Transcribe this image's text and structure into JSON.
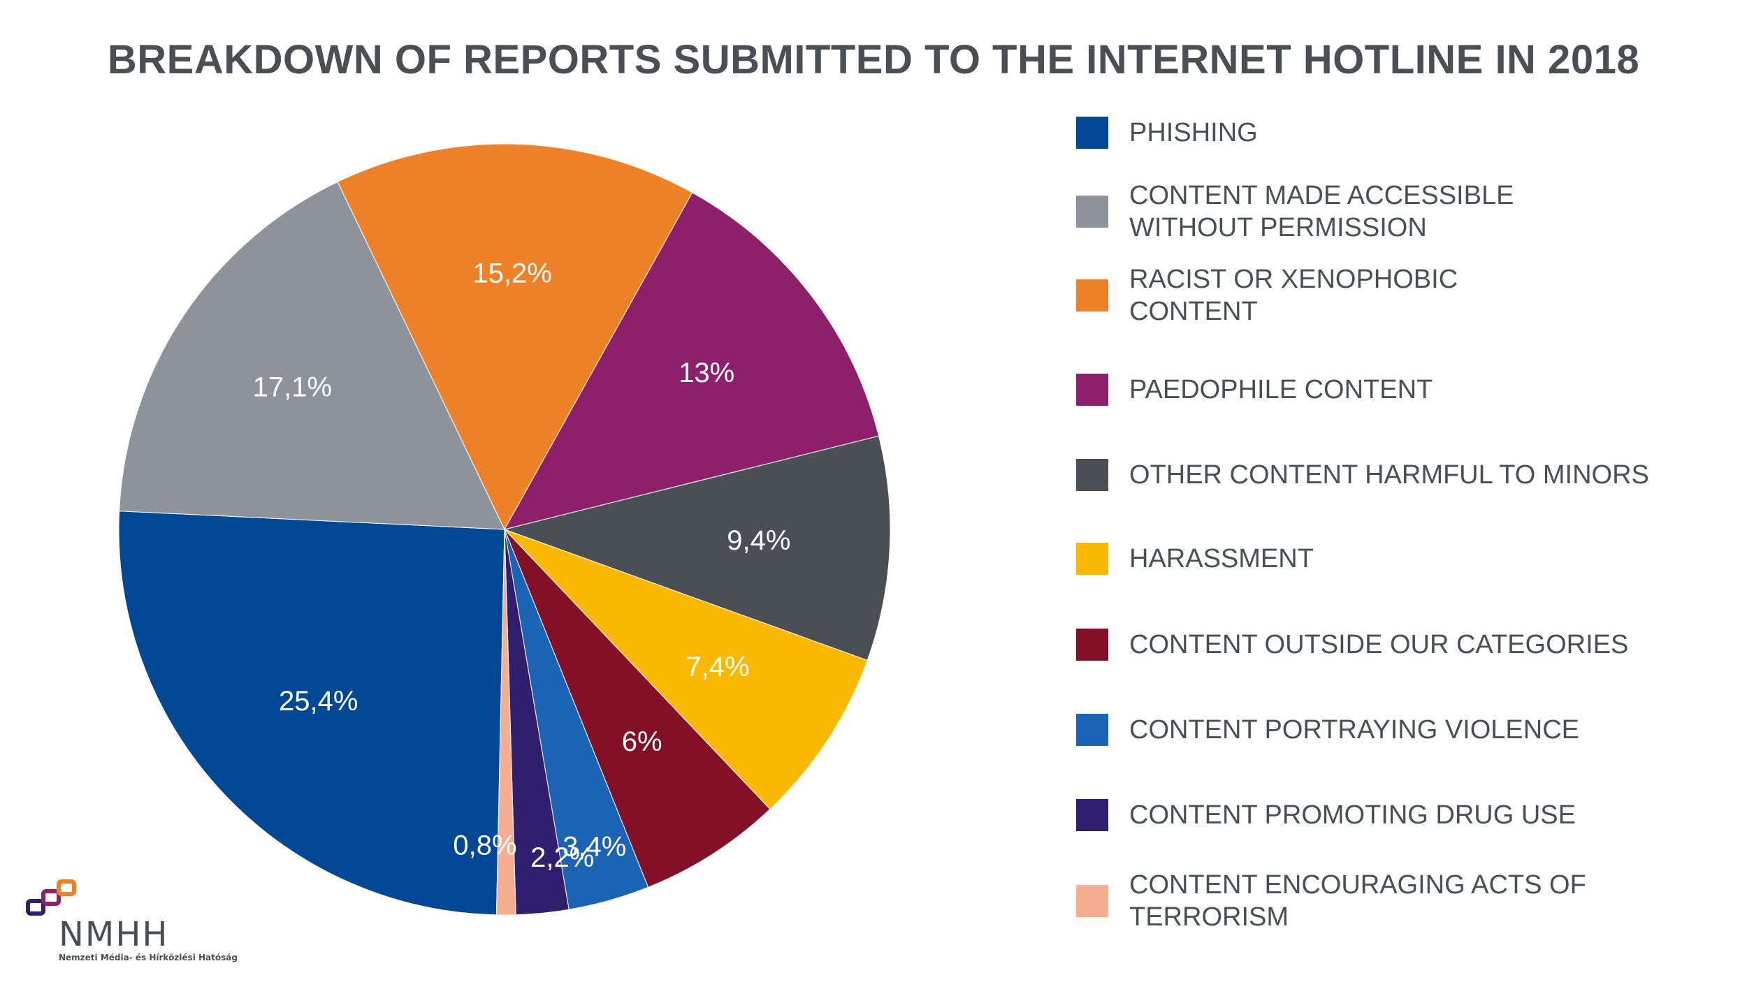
{
  "title": "BREAKDOWN OF REPORTS SUBMITTED TO THE INTERNET HOTLINE IN 2018",
  "chart_data": {
    "type": "pie",
    "title": "BREAKDOWN OF REPORTS SUBMITTED TO THE INTERNET HOTLINE IN 2018",
    "legend_position": "right",
    "slices": [
      {
        "name": "PHISHING",
        "value": 25.4,
        "label": "25,4%",
        "color": "#004896"
      },
      {
        "name": "CONTENT MADE ACCESSIBLE\nWITHOUT PERMISSION",
        "value": 17.1,
        "label": "17,1%",
        "color": "#8c939b"
      },
      {
        "name": "RACIST OR XENOPHOBIC\nCONTENT",
        "value": 15.2,
        "label": "15,2%",
        "color": "#ee8027"
      },
      {
        "name": "PAEDOPHILE CONTENT",
        "value": 13,
        "label": "13%",
        "color": "#8e1f6b"
      },
      {
        "name": "OTHER CONTENT HARMFUL TO MINORS",
        "value": 9.4,
        "label": "9,4%",
        "color": "#4a4f55"
      },
      {
        "name": "HARASSMENT",
        "value": 7.4,
        "label": "7,4%",
        "color": "#fab900"
      },
      {
        "name": "CONTENT OUTSIDE OUR CATEGORIES",
        "value": 6,
        "label": "6%",
        "color": "#841028"
      },
      {
        "name": "CONTENT PORTRAYING VIOLENCE",
        "value": 3.4,
        "label": "3,4%",
        "color": "#1b63b3"
      },
      {
        "name": "CONTENT PROMOTING DRUG USE",
        "value": 2.2,
        "label": "2,2%",
        "color": "#2e1f6f"
      },
      {
        "name": "CONTENT ENCOURAGING ACTS OF TERRORISM",
        "value": 0.8,
        "label": "0,8%",
        "color": "#f5ae92"
      }
    ]
  },
  "logo": {
    "wordmark": "NMHH",
    "subtitle": "Nemzeti Média- és Hírközlési Hatóság",
    "colors": [
      "#2e1f6f",
      "#8e1f6b",
      "#ee8027"
    ]
  }
}
